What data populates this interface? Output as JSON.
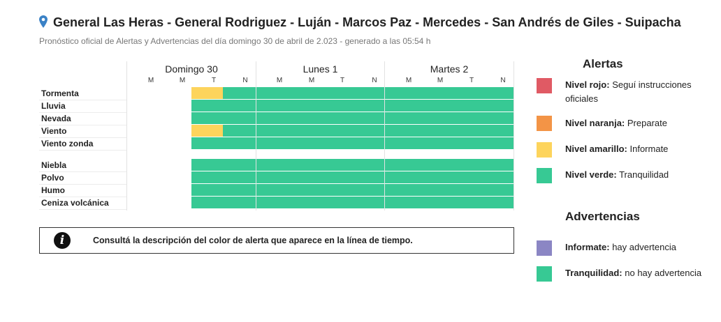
{
  "header": {
    "title": "General Las Heras - General Rodriguez - Luján - Marcos Paz - Mercedes - San Andrés de Giles - Suipacha",
    "subtitle": "Pronóstico oficial de Alertas y Advertencias del día domingo 30 de abril de 2.023 - generado a las 05:54 h",
    "icon": "location-pin-icon"
  },
  "timeline": {
    "days": [
      "Domingo 30",
      "Lunes 1",
      "Martes 2"
    ],
    "slots": [
      "M",
      "M",
      "T",
      "N"
    ],
    "rows": [
      {
        "label": "Tormenta",
        "levels": [
          null,
          null,
          "amarillo",
          "verde",
          "verde",
          "verde",
          "verde",
          "verde",
          "verde",
          "verde",
          "verde",
          "verde"
        ]
      },
      {
        "label": "Lluvia",
        "levels": [
          null,
          null,
          "verde",
          "verde",
          "verde",
          "verde",
          "verde",
          "verde",
          "verde",
          "verde",
          "verde",
          "verde"
        ]
      },
      {
        "label": "Nevada",
        "levels": [
          null,
          null,
          "verde",
          "verde",
          "verde",
          "verde",
          "verde",
          "verde",
          "verde",
          "verde",
          "verde",
          "verde"
        ]
      },
      {
        "label": "Viento",
        "levels": [
          null,
          null,
          "amarillo",
          "verde",
          "verde",
          "verde",
          "verde",
          "verde",
          "verde",
          "verde",
          "verde",
          "verde"
        ]
      },
      {
        "label": "Viento zonda",
        "levels": [
          null,
          null,
          "verde",
          "verde",
          "verde",
          "verde",
          "verde",
          "verde",
          "verde",
          "verde",
          "verde",
          "verde"
        ]
      },
      {
        "label": "Niebla",
        "levels": [
          null,
          null,
          "verde",
          "verde",
          "verde",
          "verde",
          "verde",
          "verde",
          "verde",
          "verde",
          "verde",
          "verde"
        ]
      },
      {
        "label": "Polvo",
        "levels": [
          null,
          null,
          "verde",
          "verde",
          "verde",
          "verde",
          "verde",
          "verde",
          "verde",
          "verde",
          "verde",
          "verde"
        ]
      },
      {
        "label": "Humo",
        "levels": [
          null,
          null,
          "verde",
          "verde",
          "verde",
          "verde",
          "verde",
          "verde",
          "verde",
          "verde",
          "verde",
          "verde"
        ]
      },
      {
        "label": "Ceniza volcánica",
        "levels": [
          null,
          null,
          "verde",
          "verde",
          "verde",
          "verde",
          "verde",
          "verde",
          "verde",
          "verde",
          "verde",
          "verde"
        ]
      }
    ]
  },
  "info_box": {
    "icon": "info-icon",
    "icon_glyph": "i",
    "text": "Consultá la descripción del color de alerta que aparece en la línea de tiempo."
  },
  "alertas": {
    "title": "Alertas",
    "items": [
      {
        "name": "Nivel rojo:",
        "desc": "Seguí instrucciones oficiales",
        "color": "#e05a64"
      },
      {
        "name": "Nivel naranja:",
        "desc": "Preparate",
        "color": "#f39446"
      },
      {
        "name": "Nivel amarillo:",
        "desc": "Informate",
        "color": "#fdd45c"
      },
      {
        "name": "Nivel verde:",
        "desc": "Tranquilidad",
        "color": "#37c994"
      }
    ]
  },
  "advertencias": {
    "title": "Advertencias",
    "items": [
      {
        "name": "Informate:",
        "desc": "hay advertencia",
        "color": "#8b86c4"
      },
      {
        "name": "Tranquilidad:",
        "desc": "no hay advertencia",
        "color": "#37c994"
      }
    ]
  },
  "colors": {
    "verde": "#37c994",
    "amarillo": "#fdd45c",
    "naranja": "#f39446",
    "rojo": "#e05a64",
    "grid_line": "#e2e2e2"
  }
}
